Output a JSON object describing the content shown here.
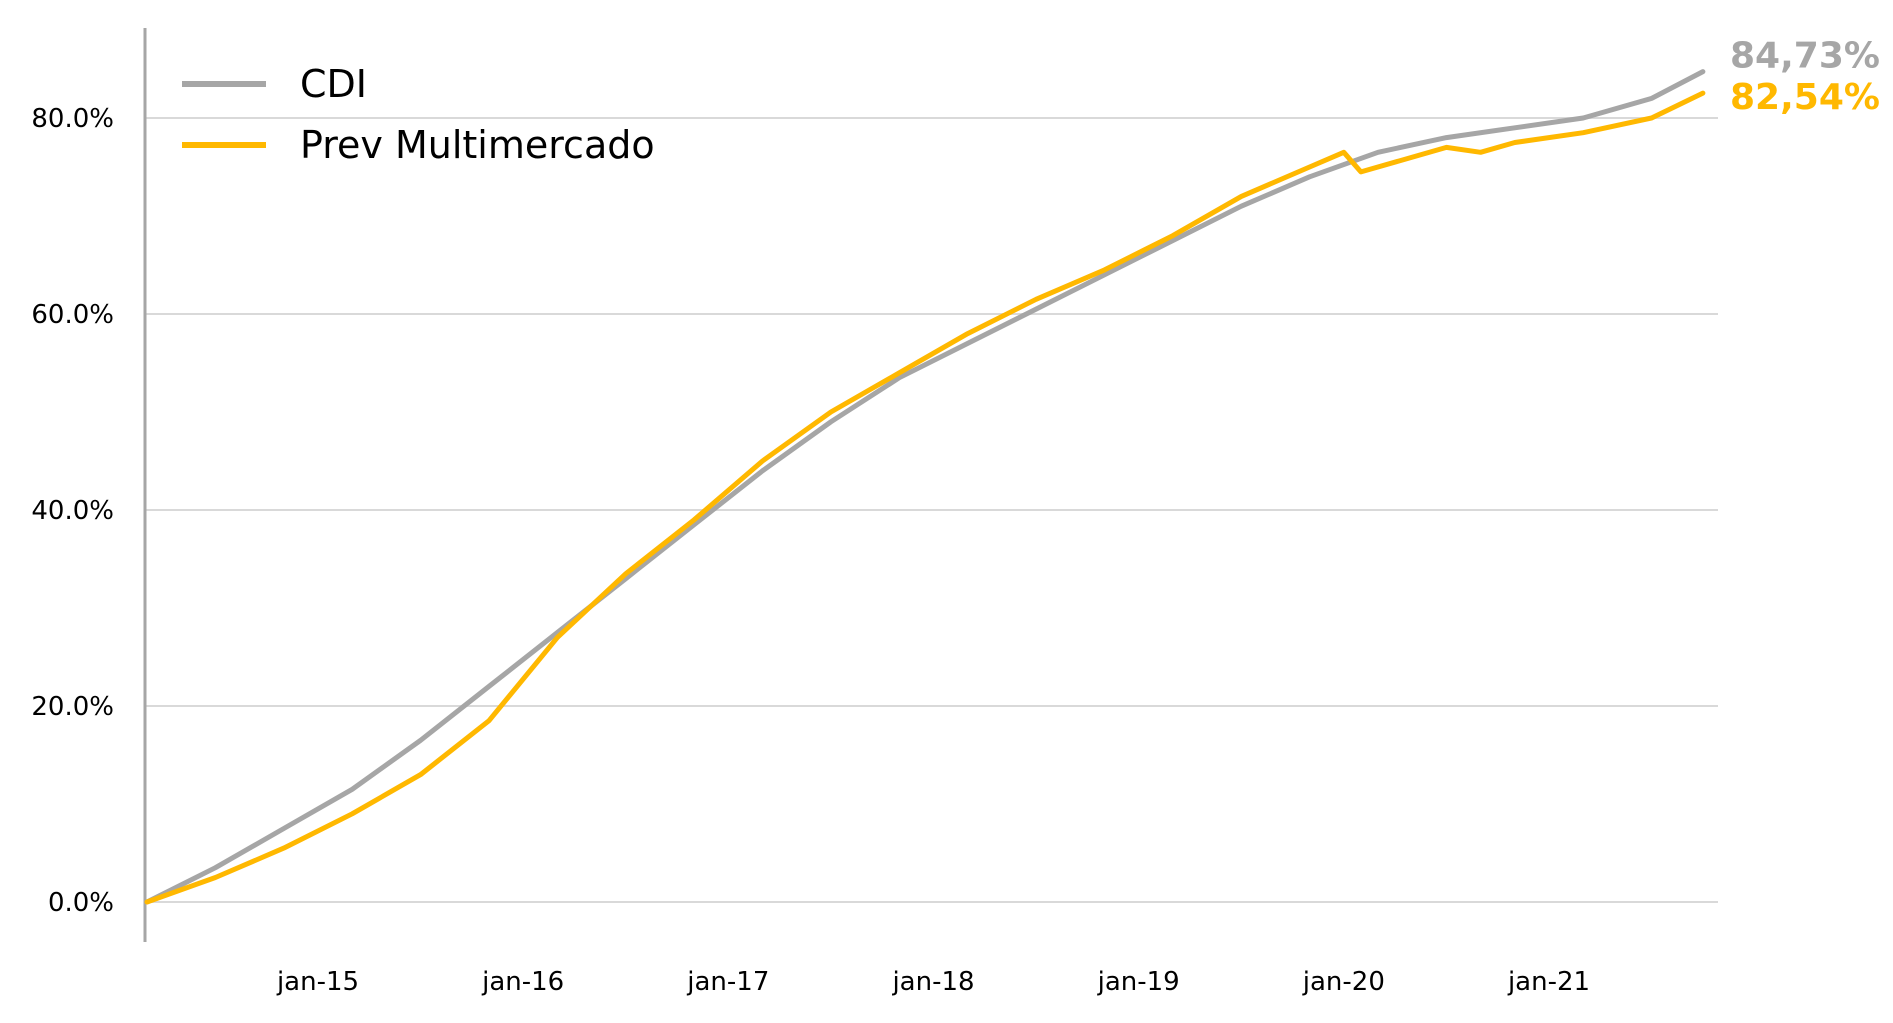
{
  "chart_data": {
    "type": "line",
    "title": "",
    "xlabel": "",
    "ylabel": "",
    "x_tick_labels": [
      "jan-15",
      "jan-16",
      "jan-17",
      "jan-18",
      "jan-19",
      "jan-20",
      "jan-21"
    ],
    "x_tick_positions": [
      "2015-01",
      "2016-01",
      "2017-01",
      "2018-01",
      "2019-01",
      "2020-01",
      "2021-01"
    ],
    "x_range": [
      "2014-03",
      "2021-10"
    ],
    "y_tick_labels": [
      "0.0%",
      "20.0%",
      "40.0%",
      "60.0%",
      "80.0%"
    ],
    "y_ticks": [
      0,
      20,
      40,
      60,
      80
    ],
    "ylim": [
      -4.5,
      89
    ],
    "grid": "horizontal",
    "legend_position": "top-left",
    "series": [
      {
        "name": "CDI",
        "color": "#A6A6A6",
        "end_label": "84,73%",
        "points": [
          [
            "2014-03",
            0.0
          ],
          [
            "2014-07",
            3.5
          ],
          [
            "2014-11",
            7.5
          ],
          [
            "2015-03",
            11.5
          ],
          [
            "2015-07",
            16.5
          ],
          [
            "2015-11",
            22.0
          ],
          [
            "2016-03",
            27.5
          ],
          [
            "2016-07",
            33.0
          ],
          [
            "2016-11",
            38.5
          ],
          [
            "2017-03",
            44.0
          ],
          [
            "2017-07",
            49.0
          ],
          [
            "2017-11",
            53.5
          ],
          [
            "2018-03",
            57.0
          ],
          [
            "2018-07",
            60.5
          ],
          [
            "2018-11",
            64.0
          ],
          [
            "2019-03",
            67.5
          ],
          [
            "2019-07",
            71.0
          ],
          [
            "2019-11",
            74.0
          ],
          [
            "2020-03",
            76.5
          ],
          [
            "2020-07",
            78.0
          ],
          [
            "2020-11",
            79.0
          ],
          [
            "2021-03",
            80.0
          ],
          [
            "2021-07",
            82.0
          ],
          [
            "2021-10",
            84.73
          ]
        ]
      },
      {
        "name": "Prev Multimercado",
        "color": "#FFB800",
        "end_label": "82,54%",
        "points": [
          [
            "2014-03",
            0.0
          ],
          [
            "2014-07",
            2.5
          ],
          [
            "2014-11",
            5.5
          ],
          [
            "2015-03",
            9.0
          ],
          [
            "2015-07",
            13.0
          ],
          [
            "2015-11",
            18.5
          ],
          [
            "2016-03",
            27.0
          ],
          [
            "2016-07",
            33.5
          ],
          [
            "2016-11",
            39.0
          ],
          [
            "2017-03",
            45.0
          ],
          [
            "2017-07",
            50.0
          ],
          [
            "2017-11",
            54.0
          ],
          [
            "2018-03",
            58.0
          ],
          [
            "2018-07",
            61.5
          ],
          [
            "2018-11",
            64.5
          ],
          [
            "2019-03",
            68.0
          ],
          [
            "2019-07",
            72.0
          ],
          [
            "2019-11",
            75.0
          ],
          [
            "2020-01",
            76.5
          ],
          [
            "2020-02",
            74.5
          ],
          [
            "2020-07",
            77.0
          ],
          [
            "2020-09",
            76.5
          ],
          [
            "2020-11",
            77.5
          ],
          [
            "2021-03",
            78.5
          ],
          [
            "2021-07",
            80.0
          ],
          [
            "2021-10",
            82.54
          ]
        ]
      }
    ]
  }
}
